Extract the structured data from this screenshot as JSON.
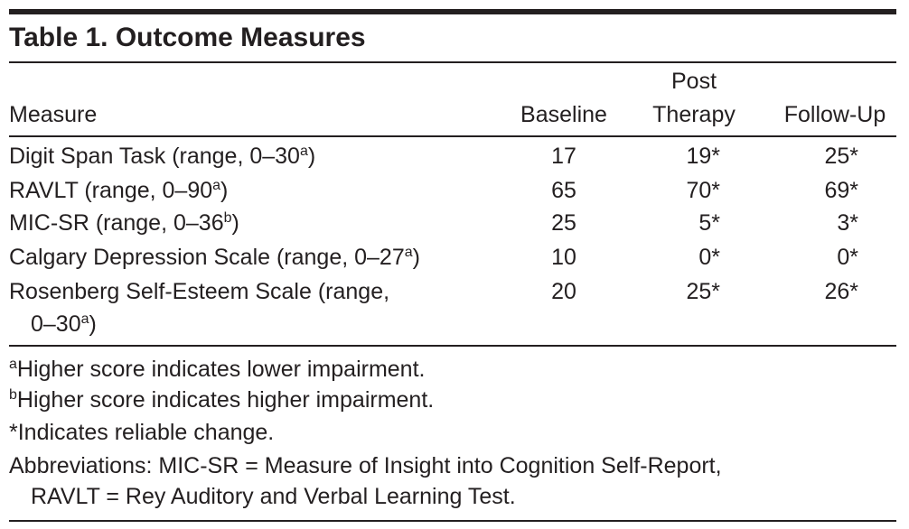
{
  "title": "Table 1. Outcome Measures",
  "table": {
    "header": {
      "measure": "Measure",
      "baseline": "Baseline",
      "post_therapy": [
        "Post",
        "Therapy"
      ],
      "follow_up": "Follow-Up"
    },
    "rows": [
      {
        "measure": [
          "Digit Span Task (range, 0–30",
          "a",
          ")"
        ],
        "baseline": "17",
        "post_therapy": "19*",
        "follow_up": "25*"
      },
      {
        "measure": [
          "RAVLT (range, 0–90",
          "a",
          ")"
        ],
        "baseline": "65",
        "post_therapy": "70*",
        "follow_up": "69*"
      },
      {
        "measure": [
          "MIC-SR (range, 0–36",
          "b",
          ")"
        ],
        "baseline": "25",
        "post_therapy": "5*",
        "follow_up": "3*"
      },
      {
        "measure": [
          "Calgary Depression Scale (range, 0–27",
          "a",
          ")"
        ],
        "baseline": "10",
        "post_therapy": "0*",
        "follow_up": "0*"
      },
      {
        "measure": [
          "Rosenberg Self-Esteem Scale (range,",
          "0–30",
          "a",
          ")"
        ],
        "baseline": "20",
        "post_therapy": "25*",
        "follow_up": "26*"
      }
    ]
  },
  "footnotes": [
    {
      "mark": "a",
      "text": "Higher score indicates lower impairment."
    },
    {
      "mark": "b",
      "text": "Higher score indicates higher impairment."
    },
    {
      "text": "*Indicates reliable change."
    },
    {
      "lines": [
        "Abbreviations: MIC-SR = Measure of Insight into Cognition Self-Report,",
        "RAVLT = Rey Auditory and Verbal Learning Test."
      ]
    }
  ]
}
